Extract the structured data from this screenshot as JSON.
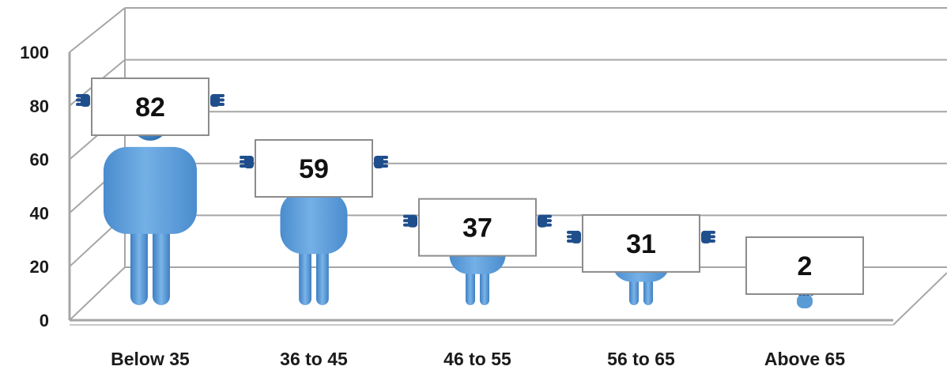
{
  "chart_data": {
    "type": "bar",
    "style": "pictograph-people-holding-signs",
    "categories": [
      "Below 35",
      "36 to 45",
      "46 to 55",
      "56 to 65",
      "Above 65"
    ],
    "values": [
      82,
      59,
      37,
      31,
      2
    ],
    "value_labels": [
      "82",
      "59",
      "37",
      "31",
      "2"
    ],
    "ylim": [
      0,
      100
    ],
    "yticks": [
      "0",
      "20",
      "40",
      "60",
      "80",
      "100"
    ],
    "title": "",
    "xlabel": "",
    "ylabel": "",
    "grid": true,
    "perspective": "3d",
    "colors": {
      "figure": "#5b9bd5",
      "figure_dark": "#2f6fae",
      "hand": "#1f4e8c",
      "sign_border": "#8c8c8c",
      "grid": "#a6a6a6"
    }
  }
}
